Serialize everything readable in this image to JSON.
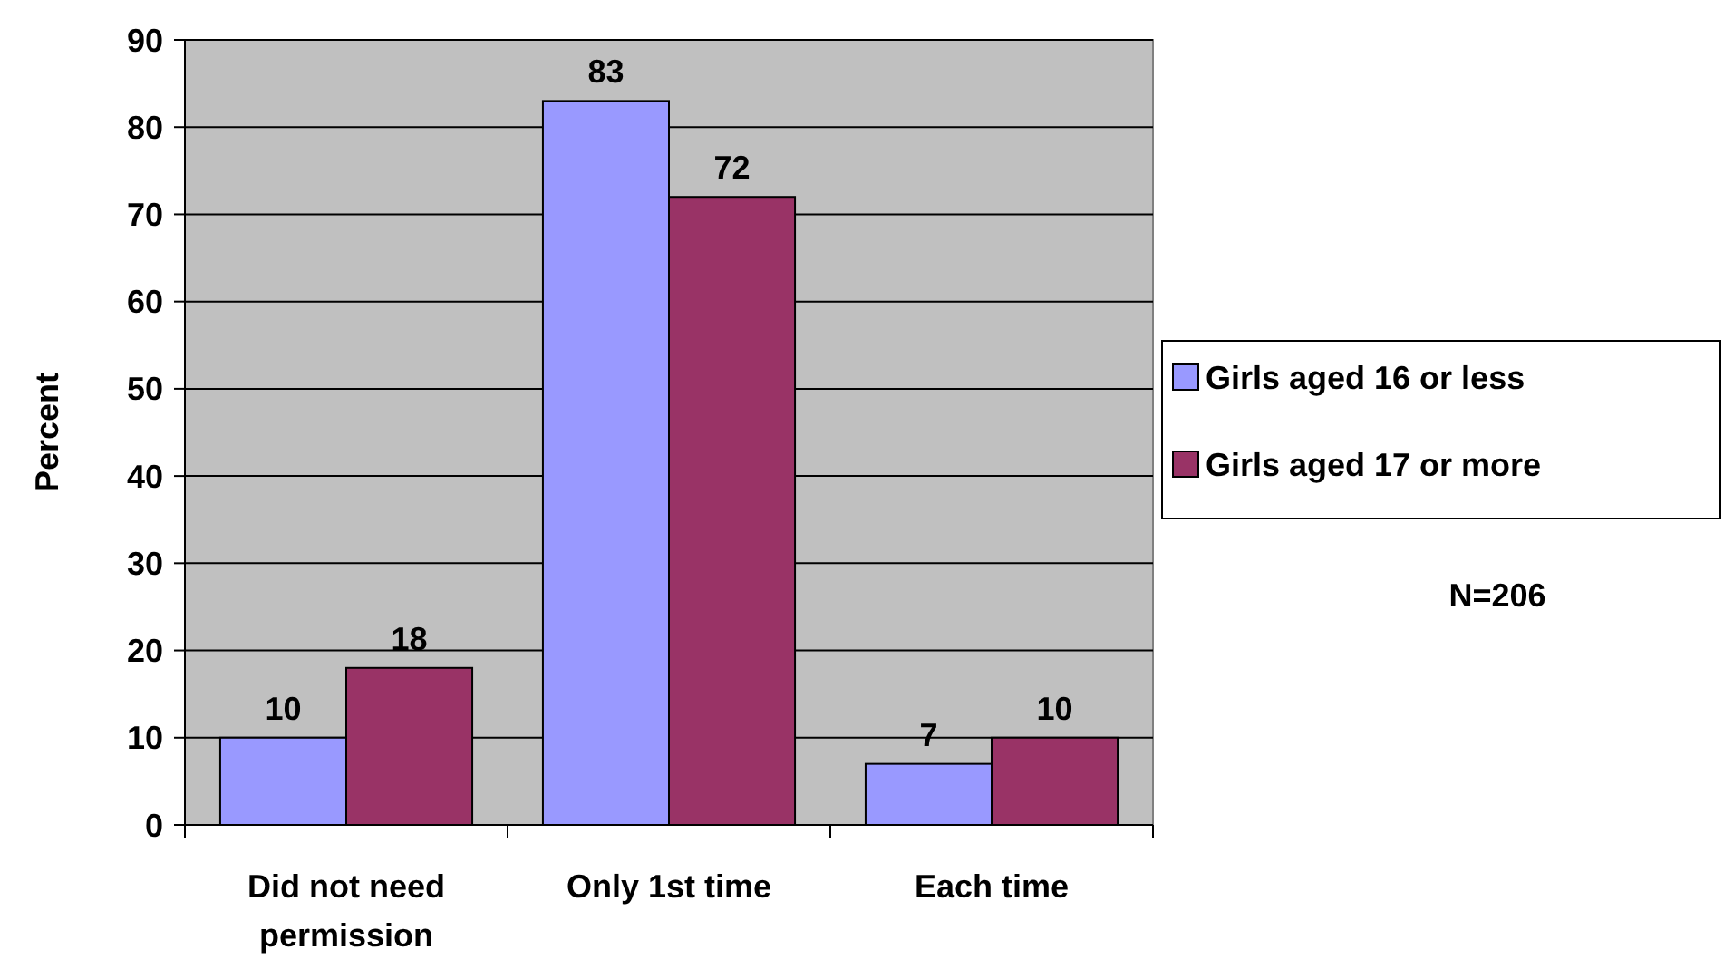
{
  "chart_data": {
    "type": "bar",
    "ylabel": "Percent",
    "categories": [
      "Did not need permission",
      "Only 1st time",
      "Each time"
    ],
    "series": [
      {
        "name": "Girls aged 16 or less",
        "color": "#9999ff",
        "values": [
          10,
          83,
          7
        ]
      },
      {
        "name": "Girls aged 17 or more",
        "color": "#993366",
        "values": [
          18,
          72,
          10
        ]
      }
    ],
    "ylim": [
      0,
      90
    ],
    "yticks": [
      0,
      10,
      20,
      30,
      40,
      50,
      60,
      70,
      80,
      90
    ],
    "grid": "y",
    "legend": "right",
    "data_labels": true,
    "annotations": [
      "N=206"
    ]
  }
}
